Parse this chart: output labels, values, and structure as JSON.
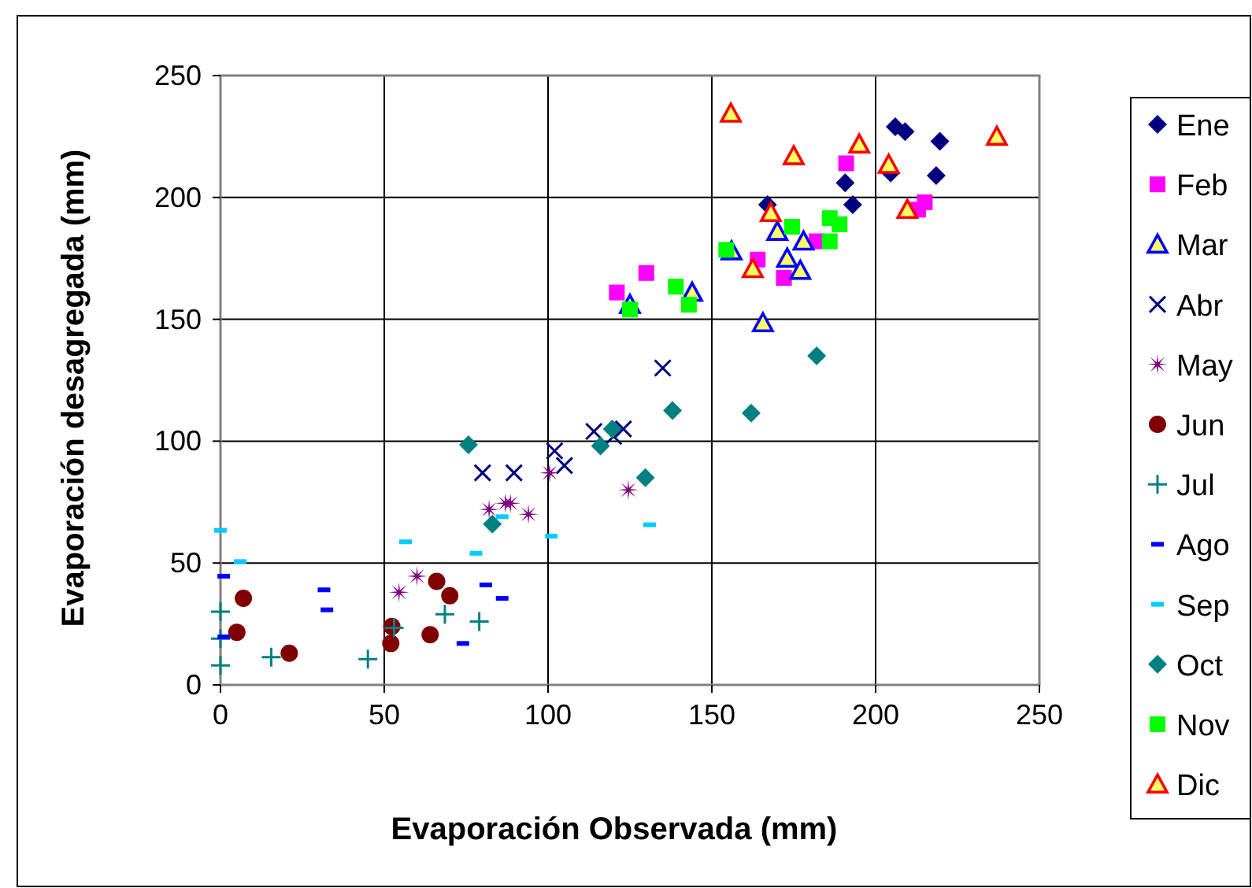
{
  "chart_data": {
    "type": "scatter",
    "xlabel": "Evaporación Observada (mm)",
    "ylabel": "Evaporación desagregada (mm)",
    "xlim": [
      0,
      250
    ],
    "ylim": [
      0,
      250
    ],
    "xticks": [
      0,
      50,
      100,
      150,
      200,
      250
    ],
    "yticks": [
      0,
      50,
      100,
      150,
      200,
      250
    ],
    "grid": true,
    "legend": "right",
    "series": [
      {
        "name": "Ene",
        "color": "#000080",
        "marker": "diamond",
        "x": [
          167,
          190.7,
          193,
          206,
          209,
          219.6,
          218.5,
          204.6
        ],
        "values": [
          197,
          206,
          197,
          229,
          227,
          223,
          209,
          210
        ]
      },
      {
        "name": "Feb",
        "color": "#ff00ff",
        "marker": "square",
        "x": [
          121,
          130,
          164,
          172,
          182,
          191,
          215,
          213
        ],
        "values": [
          161,
          169,
          174.5,
          167,
          182,
          214,
          198,
          195
        ]
      },
      {
        "name": "Mar",
        "color": "#0000ff",
        "marker": "triangle",
        "x": [
          125,
          144,
          156,
          170,
          178,
          173,
          177,
          165.6
        ],
        "values": [
          156,
          161,
          178,
          186,
          182,
          175,
          170,
          148.5
        ]
      },
      {
        "name": "Abr",
        "color": "#000080",
        "marker": "cross",
        "x": [
          80,
          89.6,
          102,
          105,
          114,
          120,
          123,
          135
        ],
        "values": [
          87,
          87,
          96,
          90,
          104,
          102,
          105,
          130
        ]
      },
      {
        "name": "May",
        "color": "#800080",
        "marker": "star",
        "x": [
          54.5,
          60,
          82,
          87,
          88.5,
          94,
          100.5,
          124.5
        ],
        "values": [
          38,
          44.6,
          72,
          74.5,
          74.5,
          70,
          87,
          80
        ]
      },
      {
        "name": "Jun",
        "color": "#800000",
        "marker": "circle",
        "x": [
          7,
          5,
          21,
          52,
          52.3,
          66,
          70,
          64
        ],
        "values": [
          35.5,
          21.6,
          13,
          17,
          24,
          42.5,
          36.6,
          20.6
        ]
      },
      {
        "name": "Jul",
        "color": "#008080",
        "marker": "plus",
        "x": [
          0,
          0,
          0,
          15.5,
          45,
          53,
          68.5,
          79
        ],
        "values": [
          30,
          19,
          8,
          11.4,
          10.6,
          23.4,
          29,
          26
        ]
      },
      {
        "name": "Ago",
        "color": "#0000ff",
        "x": [
          1,
          1,
          31.6,
          32.5,
          74,
          81,
          86
        ],
        "values": [
          44.6,
          19.7,
          39,
          30.8,
          17,
          41,
          35.5
        ]
      },
      {
        "name": "Sep",
        "color": "#00ccff",
        "x": [
          0,
          6,
          56.5,
          78,
          86,
          101,
          131
        ],
        "values": [
          63.4,
          50.6,
          58.7,
          54,
          69,
          61,
          65.7
        ]
      },
      {
        "name": "Oct",
        "color": "#008080",
        "marker": "diamond",
        "x": [
          75.7,
          83,
          116,
          119.6,
          138,
          162,
          129.7,
          182
        ],
        "values": [
          98.5,
          66,
          98,
          105,
          112.6,
          111.5,
          85,
          135
        ]
      },
      {
        "name": "Nov",
        "color": "#00ff00",
        "marker": "square",
        "x": [
          125,
          139,
          143,
          154.4,
          174.5,
          186,
          189,
          186
        ],
        "values": [
          154,
          163.4,
          156,
          178.5,
          188,
          191.5,
          189,
          182
        ]
      },
      {
        "name": "Dic",
        "color": "#ff0000",
        "marker": "triangle",
        "x": [
          155.8,
          175,
          195,
          204,
          168,
          162.5,
          209.7,
          237
        ],
        "values": [
          234.5,
          217,
          221.8,
          213.5,
          193.7,
          170.7,
          195,
          225
        ]
      }
    ]
  }
}
